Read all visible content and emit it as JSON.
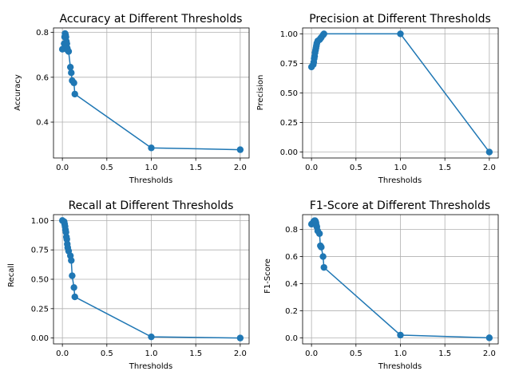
{
  "figure": {
    "background": "#ffffff",
    "series_color": "#1f77b4",
    "grid_color": "#b0b0b0"
  },
  "chart_data": [
    {
      "type": "line",
      "title": "Accuracy at Different Thresholds",
      "xlabel": "Thresholds",
      "ylabel": "Accuracy",
      "xlim": [
        -0.1,
        2.1
      ],
      "ylim": [
        0.24,
        0.82
      ],
      "xticks": [
        0.0,
        0.5,
        1.0,
        1.5,
        2.0
      ],
      "yticks": [
        0.4,
        0.6,
        0.8
      ],
      "xtick_labels": [
        "0.0",
        "0.5",
        "1.0",
        "1.5",
        "2.0"
      ],
      "ytick_labels": [
        "0.4",
        "0.6",
        "0.8"
      ],
      "grid": true,
      "marker": "circle",
      "x": [
        0.0,
        0.02,
        0.025,
        0.03,
        0.035,
        0.04,
        0.045,
        0.05,
        0.055,
        0.06,
        0.07,
        0.09,
        0.1,
        0.11,
        0.13,
        0.14,
        1.0,
        2.0
      ],
      "y": [
        0.725,
        0.75,
        0.78,
        0.795,
        0.79,
        0.78,
        0.76,
        0.75,
        0.73,
        0.72,
        0.715,
        0.645,
        0.62,
        0.585,
        0.575,
        0.525,
        0.285,
        0.277
      ]
    },
    {
      "type": "line",
      "title": "Precision at Different Thresholds",
      "xlabel": "Thresholds",
      "ylabel": "Precision",
      "xlim": [
        -0.1,
        2.1
      ],
      "ylim": [
        -0.05,
        1.05
      ],
      "xticks": [
        0.0,
        0.5,
        1.0,
        1.5,
        2.0
      ],
      "yticks": [
        0.0,
        0.25,
        0.5,
        0.75,
        1.0
      ],
      "xtick_labels": [
        "0.0",
        "0.5",
        "1.0",
        "1.5",
        "2.0"
      ],
      "ytick_labels": [
        "0.00",
        "0.25",
        "0.50",
        "0.75",
        "1.00"
      ],
      "grid": true,
      "marker": "circle",
      "x": [
        0.0,
        0.02,
        0.025,
        0.03,
        0.035,
        0.04,
        0.045,
        0.05,
        0.055,
        0.06,
        0.07,
        0.09,
        0.1,
        0.11,
        0.13,
        0.14,
        1.0,
        2.0
      ],
      "y": [
        0.72,
        0.74,
        0.76,
        0.79,
        0.81,
        0.84,
        0.86,
        0.88,
        0.9,
        0.92,
        0.94,
        0.95,
        0.96,
        0.97,
        0.99,
        1.0,
        1.0,
        0.0
      ]
    },
    {
      "type": "line",
      "title": "Recall at Different Thresholds",
      "xlabel": "Thresholds",
      "ylabel": "Recall",
      "xlim": [
        -0.1,
        2.1
      ],
      "ylim": [
        -0.05,
        1.05
      ],
      "xticks": [
        0.0,
        0.5,
        1.0,
        1.5,
        2.0
      ],
      "yticks": [
        0.0,
        0.25,
        0.5,
        0.75,
        1.0
      ],
      "xtick_labels": [
        "0.0",
        "0.5",
        "1.0",
        "1.5",
        "2.0"
      ],
      "ytick_labels": [
        "0.00",
        "0.25",
        "0.50",
        "0.75",
        "1.00"
      ],
      "grid": true,
      "marker": "circle",
      "x": [
        0.0,
        0.02,
        0.025,
        0.03,
        0.035,
        0.04,
        0.045,
        0.05,
        0.055,
        0.06,
        0.07,
        0.09,
        0.1,
        0.11,
        0.13,
        0.14,
        1.0,
        2.0
      ],
      "y": [
        1.0,
        0.99,
        0.97,
        0.95,
        0.92,
        0.9,
        0.86,
        0.84,
        0.8,
        0.77,
        0.74,
        0.7,
        0.66,
        0.53,
        0.43,
        0.35,
        0.01,
        0.0
      ]
    },
    {
      "type": "line",
      "title": "F1-Score at Different Thresholds",
      "xlabel": "Thresholds",
      "ylabel": "F1-Score",
      "xlim": [
        -0.1,
        2.1
      ],
      "ylim": [
        -0.045,
        0.91
      ],
      "xticks": [
        0.0,
        0.5,
        1.0,
        1.5,
        2.0
      ],
      "yticks": [
        0.0,
        0.2,
        0.4,
        0.6,
        0.8
      ],
      "xtick_labels": [
        "0.0",
        "0.5",
        "1.0",
        "1.5",
        "2.0"
      ],
      "ytick_labels": [
        "0.0",
        "0.2",
        "0.4",
        "0.6",
        "0.8"
      ],
      "grid": true,
      "marker": "circle",
      "x": [
        0.0,
        0.02,
        0.025,
        0.03,
        0.035,
        0.04,
        0.045,
        0.05,
        0.055,
        0.06,
        0.07,
        0.09,
        0.1,
        0.11,
        0.13,
        0.14,
        1.0,
        2.0
      ],
      "y": [
        0.84,
        0.85,
        0.86,
        0.86,
        0.865,
        0.865,
        0.86,
        0.85,
        0.83,
        0.82,
        0.79,
        0.77,
        0.68,
        0.67,
        0.6,
        0.52,
        0.02,
        0.0
      ]
    }
  ]
}
